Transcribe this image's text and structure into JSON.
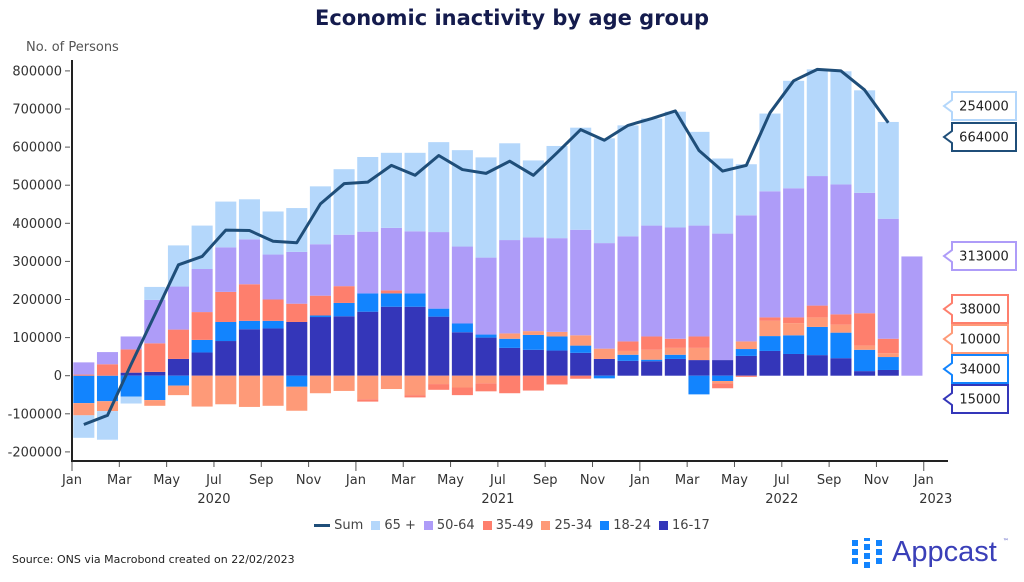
{
  "chart_data": {
    "type": "bar",
    "stacked": true,
    "title": "Economic inactivity by age group",
    "ylabel": "No. of Persons",
    "ylim": [
      -200000,
      800000
    ],
    "yticks": [
      800000,
      700000,
      600000,
      500000,
      400000,
      300000,
      200000,
      100000,
      0,
      -100000,
      -200000
    ],
    "ytick_labels": [
      "800000",
      "700000",
      "600000",
      "500000",
      "400000",
      "300000",
      "200000",
      "100000",
      "0",
      "-100000",
      "-200000"
    ],
    "xlim": [
      "2020-01",
      "2023-01"
    ],
    "xtick_labels": [
      "Jan",
      "Mar",
      "May",
      "Jul",
      "Sep",
      "Nov",
      "Jan",
      "Mar",
      "May",
      "Jul",
      "Sep",
      "Nov",
      "Jan",
      "Mar",
      "May",
      "Jul",
      "Sep",
      "Nov",
      "Jan"
    ],
    "year_labels": [
      "2020",
      "2021",
      "2022",
      "2023"
    ],
    "grid": false,
    "legend_placement": "bottom",
    "x": [
      "2020-01",
      "2020-02",
      "2020-03",
      "2020-04",
      "2020-05",
      "2020-06",
      "2020-07",
      "2020-08",
      "2020-09",
      "2020-10",
      "2020-11",
      "2020-12",
      "2021-01",
      "2021-02",
      "2021-03",
      "2021-04",
      "2021-05",
      "2021-06",
      "2021-07",
      "2021-08",
      "2021-09",
      "2021-10",
      "2021-11",
      "2021-12",
      "2022-01",
      "2022-02",
      "2022-03",
      "2022-04",
      "2022-05",
      "2022-06",
      "2022-07",
      "2022-08",
      "2022-09",
      "2022-10",
      "2022-11",
      "2022-12"
    ],
    "series": [
      {
        "name": "16-17",
        "color": "#3436b9",
        "values": [
          0,
          0,
          8000,
          10000,
          44000,
          61000,
          91000,
          122000,
          124000,
          141000,
          154000,
          156000,
          168000,
          181000,
          181000,
          155000,
          114000,
          100000,
          73000,
          68000,
          66000,
          60000,
          44000,
          39000,
          38000,
          44000,
          41000,
          41000,
          52000,
          65000,
          57000,
          54000,
          46000,
          12000,
          15000,
          null
        ]
      },
      {
        "name": "18-24",
        "color": "#1284fe",
        "values": [
          -72000,
          -67000,
          -55000,
          -64000,
          -26000,
          33000,
          50000,
          22000,
          20000,
          -29000,
          4000,
          35000,
          48000,
          35000,
          35000,
          21000,
          23000,
          8000,
          24000,
          39000,
          37000,
          19000,
          -7000,
          16000,
          4000,
          11000,
          -49000,
          -14000,
          18000,
          39000,
          49000,
          74000,
          67000,
          56000,
          34000,
          null
        ]
      },
      {
        "name": "25-34",
        "color": "#fe9a78",
        "values": [
          -32000,
          -26000,
          0,
          -15000,
          -25000,
          -81000,
          -75000,
          -82000,
          -79000,
          -63000,
          -46000,
          -40000,
          -62000,
          -35000,
          -51000,
          -22000,
          -31000,
          -20000,
          14000,
          10000,
          12000,
          27000,
          27000,
          10000,
          26000,
          18000,
          32000,
          -6000,
          20000,
          40000,
          32000,
          25000,
          21000,
          11000,
          10000,
          null
        ]
      },
      {
        "name": "35-49",
        "color": "#fe7f6d",
        "values": [
          3000,
          30000,
          61000,
          75000,
          77000,
          73000,
          79000,
          96000,
          56000,
          48000,
          52000,
          44000,
          -6000,
          8000,
          -6000,
          -15000,
          -20000,
          -21000,
          -46000,
          -39000,
          -23000,
          -8000,
          0,
          25000,
          35000,
          24000,
          30000,
          -13000,
          -3000,
          9000,
          15000,
          31000,
          27000,
          85000,
          38000,
          null
        ]
      },
      {
        "name": "50-64",
        "color": "#ae9cf8",
        "values": [
          32000,
          32000,
          34000,
          114000,
          113000,
          113000,
          117000,
          118000,
          118000,
          136000,
          135000,
          135000,
          162000,
          164000,
          163000,
          201000,
          202000,
          202000,
          245000,
          246000,
          246000,
          277000,
          277000,
          276000,
          291000,
          292000,
          291000,
          332000,
          331000,
          331000,
          339000,
          340000,
          341000,
          316000,
          315000,
          313000
        ]
      },
      {
        "name": "65 +",
        "color": "#b4d7fb",
        "values": [
          -59000,
          -75000,
          -18000,
          34000,
          108000,
          114000,
          120000,
          105000,
          113000,
          115000,
          152000,
          172000,
          196000,
          197000,
          206000,
          236000,
          253000,
          263000,
          254000,
          202000,
          242000,
          268000,
          275000,
          291000,
          281000,
          304000,
          246000,
          197000,
          134000,
          204000,
          282000,
          280000,
          297000,
          269000,
          254000,
          null
        ]
      }
    ],
    "line_series": {
      "name": "Sum",
      "color": "#1f4e79",
      "values": [
        -128000,
        -104000,
        30000,
        160000,
        291000,
        313000,
        382000,
        381000,
        353000,
        349000,
        451000,
        504000,
        508000,
        552000,
        526000,
        578000,
        541000,
        531000,
        563000,
        526000,
        585000,
        646000,
        618000,
        657000,
        675000,
        695000,
        591000,
        537000,
        552000,
        690000,
        774000,
        804000,
        800000,
        750000,
        664000,
        null
      ]
    },
    "end_labels": [
      {
        "series": "65 +",
        "text": "254000",
        "color": "#b4d7fb"
      },
      {
        "series": "Sum",
        "text": "664000",
        "color": "#1f4e79"
      },
      {
        "series": "50-64",
        "text": "313000",
        "color": "#ae9cf8"
      },
      {
        "series": "35-49",
        "text": "38000",
        "color": "#fe7f6d"
      },
      {
        "series": "25-34",
        "text": "10000",
        "color": "#fe9a78"
      },
      {
        "series": "18-24",
        "text": "34000",
        "color": "#1284fe"
      },
      {
        "series": "16-17",
        "text": "15000",
        "color": "#3436b9"
      }
    ]
  },
  "legend": [
    {
      "label": "Sum",
      "color": "#1f4e79",
      "kind": "line"
    },
    {
      "label": "65 +",
      "color": "#b4d7fb",
      "kind": "box"
    },
    {
      "label": "50-64",
      "color": "#ae9cf8",
      "kind": "box"
    },
    {
      "label": "35-49",
      "color": "#fe7f6d",
      "kind": "box"
    },
    {
      "label": "25-34",
      "color": "#fe9a78",
      "kind": "box"
    },
    {
      "label": "18-24",
      "color": "#1284fe",
      "kind": "box"
    },
    {
      "label": "16-17",
      "color": "#3436b9",
      "kind": "box"
    }
  ],
  "source": "Source: ONS via Macrobond created on 22/02/2023",
  "logo": {
    "text": "Appcast",
    "tm": "™"
  }
}
